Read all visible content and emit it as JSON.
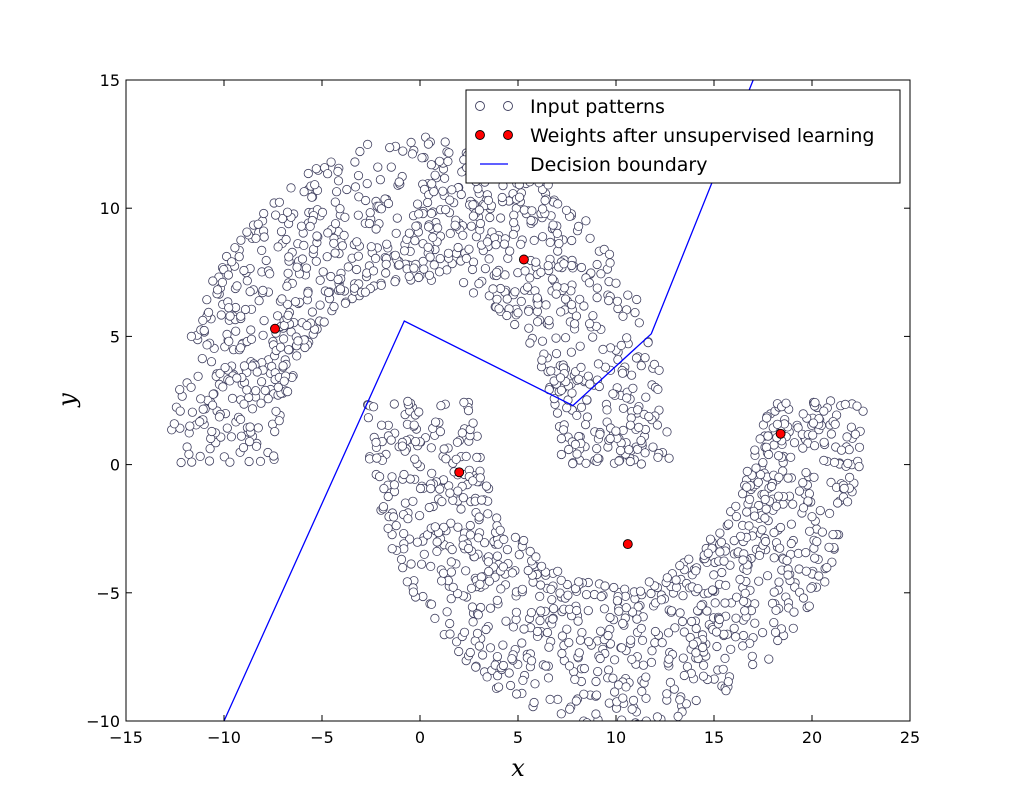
{
  "chart_data": {
    "type": "scatter",
    "xlabel": "x",
    "ylabel": "y",
    "xlim": [
      -15,
      25
    ],
    "ylim": [
      -10,
      15
    ],
    "xticks": [
      "−15",
      "−10",
      "−5",
      "0",
      "5",
      "10",
      "15",
      "20",
      "25"
    ],
    "yticks": [
      "−10",
      "−5",
      "0",
      "5",
      "10",
      "15"
    ],
    "legend": {
      "placement": "top-right",
      "entries": [
        "Input patterns",
        "Weights after unsupervised learning",
        "Decision boundary"
      ]
    },
    "series": [
      {
        "name": "Input patterns",
        "style": "open-circle",
        "distribution": {
          "shape": "two interleaved half-moons",
          "upper_moon": {
            "center": [
              0,
              0
            ],
            "radius_range": [
              7.2,
              12.8
            ],
            "angle_range_deg": [
              0,
              180
            ]
          },
          "lower_moon": {
            "center": [
              10,
              2.5
            ],
            "radius_range": [
              7.2,
              12.8
            ],
            "angle_range_deg": [
              180,
              360
            ]
          },
          "count_per_moon": 1000
        }
      },
      {
        "name": "Weights after unsupervised learning",
        "style": "filled-circle",
        "points": [
          {
            "x": -7.4,
            "y": 5.3
          },
          {
            "x": 5.3,
            "y": 8.0
          },
          {
            "x": 2.0,
            "y": -0.3
          },
          {
            "x": 10.6,
            "y": -3.1
          },
          {
            "x": 18.4,
            "y": 1.2
          }
        ]
      },
      {
        "name": "Decision boundary",
        "style": "line",
        "points": [
          {
            "x": -10,
            "y": -10
          },
          {
            "x": -0.8,
            "y": 5.6
          },
          {
            "x": 7.8,
            "y": 2.3
          },
          {
            "x": 11.8,
            "y": 5.1
          },
          {
            "x": 17.0,
            "y": 15.0
          }
        ]
      }
    ],
    "colors": {
      "pattern_fill": "#ffffff",
      "pattern_stroke": "#404060",
      "weight_fill": "#ff0000",
      "boundary": "#0000ff"
    }
  }
}
